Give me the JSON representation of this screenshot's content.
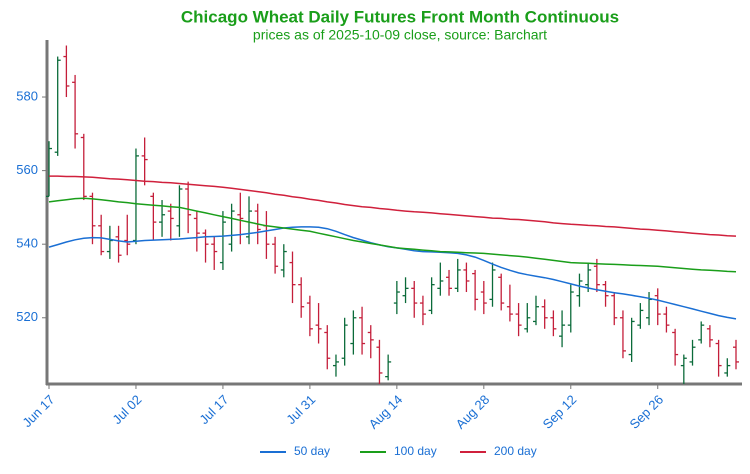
{
  "chart_data": {
    "type": "ohlc",
    "title": "Chicago Wheat Daily Futures Front Month Continuous",
    "subtitle": "prices as of 2025-10-09 close, source: Barchart",
    "categories": [
      "Jun 17",
      null,
      null,
      null,
      null,
      null,
      null,
      null,
      null,
      null,
      "Jul 02",
      null,
      null,
      null,
      null,
      null,
      null,
      null,
      null,
      null,
      "Jul 17",
      null,
      null,
      null,
      null,
      null,
      null,
      null,
      null,
      null,
      "Jul 31",
      null,
      null,
      null,
      null,
      null,
      null,
      null,
      null,
      null,
      "Aug 14",
      null,
      null,
      null,
      null,
      null,
      null,
      null,
      null,
      null,
      "Aug 28",
      null,
      null,
      null,
      null,
      null,
      null,
      null,
      null,
      null,
      "Sep 12",
      null,
      null,
      null,
      null,
      null,
      null,
      null,
      null,
      null,
      "Sep 26",
      null,
      null,
      null,
      null,
      null,
      null,
      null,
      null,
      null
    ],
    "open": [
      553,
      565,
      591,
      584,
      569,
      553,
      545,
      538,
      542,
      541,
      541,
      564,
      553,
      546,
      549,
      545,
      555,
      547,
      543,
      540,
      535,
      540,
      548,
      542,
      549,
      545,
      540,
      533,
      535,
      529,
      524,
      518,
      516,
      507,
      509,
      513,
      520,
      516,
      512,
      504,
      524,
      526,
      528,
      524,
      522,
      528,
      531,
      528,
      533,
      532,
      527,
      525,
      531,
      523,
      521,
      517,
      519,
      523,
      520,
      515,
      518,
      526,
      529,
      534,
      529,
      526,
      520,
      510,
      518,
      520,
      526,
      521,
      516,
      507,
      508,
      514,
      517,
      513,
      505,
      512
    ],
    "high": [
      568,
      591,
      594,
      586,
      570,
      554,
      548,
      545,
      545,
      548,
      566,
      569,
      554,
      552,
      551,
      556,
      557,
      549,
      544,
      542,
      549,
      551,
      554,
      553,
      551,
      549,
      542,
      540,
      538,
      531,
      526,
      524,
      518,
      510,
      520,
      522,
      523,
      518,
      514,
      510,
      530,
      531,
      530,
      526,
      531,
      535,
      533,
      536,
      535,
      533,
      530,
      535,
      532,
      529,
      524,
      524,
      526,
      525,
      522,
      522,
      529,
      532,
      535,
      536,
      530,
      527,
      522,
      520,
      524,
      527,
      528,
      523,
      517,
      510,
      514,
      519,
      518,
      514,
      509,
      514
    ],
    "low": [
      553,
      564,
      580,
      566,
      552,
      540,
      537,
      536,
      535,
      537,
      540,
      556,
      541,
      542,
      541,
      542,
      543,
      538,
      535,
      533,
      533,
      538,
      540,
      540,
      540,
      536,
      532,
      531,
      524,
      520,
      515,
      513,
      506,
      504,
      507,
      510,
      510,
      509,
      502,
      503,
      521,
      524,
      520,
      518,
      521,
      526,
      526,
      527,
      527,
      522,
      521,
      523,
      522,
      519,
      515,
      516,
      518,
      517,
      515,
      512,
      516,
      523,
      527,
      527,
      523,
      518,
      509,
      508,
      517,
      518,
      518,
      516,
      507,
      502,
      507,
      513,
      512,
      504,
      504,
      506
    ],
    "close": [
      566,
      590,
      583,
      570,
      553,
      545,
      538,
      541,
      537,
      540,
      564,
      563,
      546,
      548,
      547,
      555,
      548,
      543,
      540,
      538,
      546,
      549,
      547,
      549,
      544,
      540,
      534,
      538,
      529,
      523,
      517,
      517,
      509,
      508,
      518,
      520,
      513,
      514,
      505,
      508,
      527,
      528,
      524,
      521,
      529,
      530,
      528,
      533,
      530,
      525,
      524,
      533,
      524,
      521,
      518,
      520,
      523,
      520,
      517,
      518,
      527,
      530,
      533,
      529,
      526,
      520,
      511,
      519,
      522,
      525,
      521,
      518,
      510,
      509,
      512,
      518,
      514,
      507,
      507,
      508
    ],
    "up_color": "#0b6b3a",
    "down_color": "#c41e3a",
    "series": [
      {
        "name": "50 day",
        "color": "#1a6fd4",
        "values": [
          539.2,
          539.9,
          540.6,
          541.2,
          541.6,
          541.8,
          541.7,
          541.3,
          540.9,
          540.6,
          540.8,
          541.0,
          541.1,
          541.2,
          541.3,
          541.4,
          541.6,
          541.8,
          542.0,
          542.1,
          542.2,
          542.4,
          542.6,
          542.9,
          543.2,
          543.6,
          544.0,
          544.4,
          544.6,
          544.7,
          544.7,
          544.6,
          544.2,
          543.5,
          542.6,
          541.8,
          541.1,
          540.4,
          539.8,
          539.3,
          539.0,
          538.6,
          538.2,
          538.0,
          537.9,
          537.8,
          537.7,
          537.5,
          537.1,
          536.5,
          535.6,
          534.6,
          533.7,
          532.9,
          532.2,
          531.7,
          531.3,
          530.9,
          530.4,
          529.8,
          529.2,
          528.6,
          528.1,
          527.6,
          527.2,
          526.8,
          526.5,
          526.1,
          525.7,
          525.3,
          524.8,
          524.2,
          523.6,
          523.0,
          522.4,
          521.8,
          521.2,
          520.6,
          520.1,
          519.7
        ]
      },
      {
        "name": "100 day",
        "color": "#1a9e1a",
        "values": [
          551.5,
          551.8,
          552.1,
          552.4,
          552.5,
          552.3,
          552.1,
          551.8,
          551.5,
          551.3,
          551.0,
          550.8,
          550.6,
          550.4,
          550.2,
          550.0,
          549.5,
          549.0,
          548.5,
          548.0,
          547.5,
          547.0,
          546.5,
          546.0,
          545.5,
          545.0,
          544.7,
          544.4,
          544.1,
          543.8,
          543.5,
          543.0,
          542.5,
          542.0,
          541.5,
          541.0,
          540.6,
          540.2,
          539.8,
          539.4,
          539.0,
          538.8,
          538.6,
          538.4,
          538.2,
          538.0,
          537.9,
          537.8,
          537.7,
          537.6,
          537.5,
          537.3,
          537.1,
          536.9,
          536.7,
          536.5,
          536.2,
          535.9,
          535.6,
          535.3,
          535.0,
          534.9,
          534.8,
          534.7,
          534.6,
          534.5,
          534.4,
          534.3,
          534.2,
          534.1,
          534.0,
          533.8,
          533.6,
          533.4,
          533.2,
          533.0,
          532.9,
          532.8,
          532.6,
          532.5
        ]
      },
      {
        "name": "200 day",
        "color": "#d0203c",
        "values": [
          558.5,
          558.5,
          558.4,
          558.4,
          558.3,
          558.2,
          558.0,
          557.8,
          557.7,
          557.5,
          557.3,
          557.1,
          557.0,
          556.8,
          556.7,
          556.5,
          556.3,
          556.1,
          555.9,
          555.7,
          555.5,
          555.2,
          554.9,
          554.6,
          554.3,
          554.0,
          553.6,
          553.3,
          552.9,
          552.6,
          552.2,
          551.9,
          551.5,
          551.2,
          550.8,
          550.5,
          550.2,
          550.0,
          549.7,
          549.5,
          549.2,
          549.0,
          548.8,
          548.7,
          548.5,
          548.3,
          548.1,
          547.9,
          547.7,
          547.5,
          547.3,
          547.1,
          547.0,
          546.8,
          546.7,
          546.5,
          546.3,
          546.1,
          545.8,
          545.6,
          545.4,
          545.3,
          545.1,
          545.0,
          544.8,
          544.7,
          544.5,
          544.3,
          544.1,
          544.0,
          543.8,
          543.6,
          543.4,
          543.2,
          543.0,
          542.8,
          542.6,
          542.5,
          542.3,
          542.2
        ]
      }
    ],
    "ylim": [
      502,
      595.5
    ],
    "yticks": [
      520,
      540,
      560,
      580
    ],
    "grid": false,
    "legend": "bottom"
  }
}
